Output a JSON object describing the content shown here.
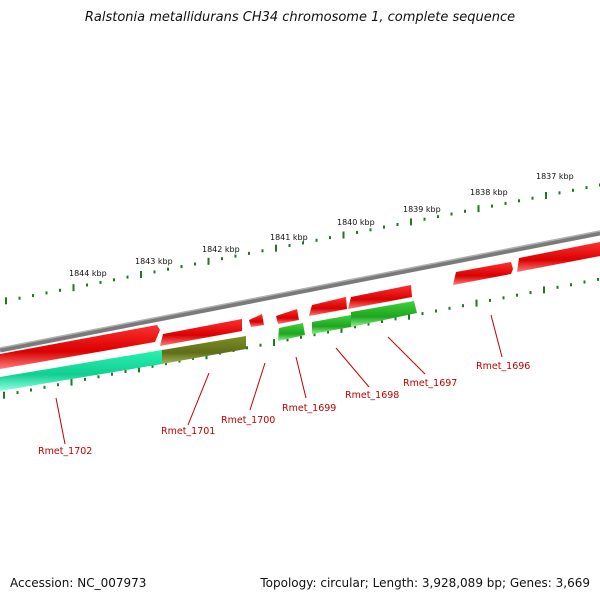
{
  "title": "Ralstonia metallidurans CH34 chromosome 1, complete sequence",
  "footer": {
    "accession": "Accession: NC_007973",
    "summary": "Topology: circular; Length: 3,928,089 bp; Genes: 3,669"
  },
  "scale_labels": [
    "1844 kbp",
    "1843 kbp",
    "1842 kbp",
    "1841 kbp",
    "1840 kbp",
    "1839 kbp",
    "1838 kbp",
    "1837 kbp"
  ],
  "gene_labels": [
    "Rmet_1702",
    "Rmet_1701",
    "Rmet_1700",
    "Rmet_1699",
    "Rmet_1698",
    "Rmet_1697",
    "Rmet_1696"
  ],
  "colors": {
    "backbone": "#8a8a8a",
    "forward_gene": "#e01010",
    "reverse_gene": "#28b428",
    "reverse_gene_alt": "#20e6a0",
    "reverse_gene_olive": "#6b7a20",
    "tick": "#1e7a1e",
    "label": "#c00000"
  }
}
